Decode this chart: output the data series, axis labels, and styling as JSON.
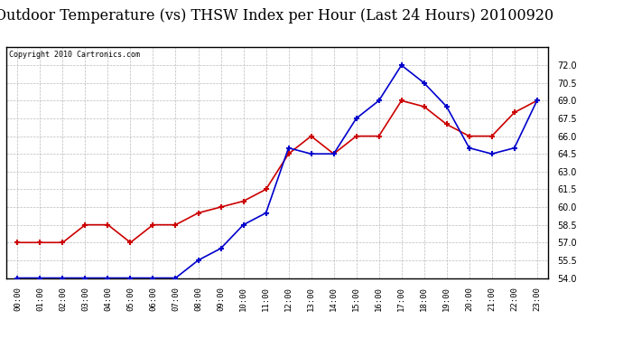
{
  "title": "Outdoor Temperature (vs) THSW Index per Hour (Last 24 Hours) 20100920",
  "copyright_text": "Copyright 2010 Cartronics.com",
  "hours": [
    "00:00",
    "01:00",
    "02:00",
    "03:00",
    "04:00",
    "05:00",
    "06:00",
    "07:00",
    "08:00",
    "09:00",
    "10:00",
    "11:00",
    "12:00",
    "13:00",
    "14:00",
    "15:00",
    "16:00",
    "17:00",
    "18:00",
    "19:00",
    "20:00",
    "21:00",
    "22:00",
    "23:00"
  ],
  "outdoor_temp": [
    57.0,
    57.0,
    57.0,
    58.5,
    58.5,
    57.0,
    58.5,
    58.5,
    59.5,
    60.0,
    60.5,
    61.5,
    64.5,
    66.0,
    64.5,
    66.0,
    66.0,
    69.0,
    68.5,
    67.0,
    66.0,
    66.0,
    68.0,
    69.0
  ],
  "thsw_index": [
    54.0,
    54.0,
    54.0,
    54.0,
    54.0,
    54.0,
    54.0,
    54.0,
    55.5,
    56.5,
    58.5,
    59.5,
    65.0,
    64.5,
    64.5,
    67.5,
    69.0,
    72.0,
    70.5,
    68.5,
    65.0,
    64.5,
    65.0,
    69.0
  ],
  "temp_color": "#cc0000",
  "thsw_color": "#0000cc",
  "ylim_min": 54.0,
  "ylim_max": 73.5,
  "yticks": [
    54.0,
    55.5,
    57.0,
    58.5,
    60.0,
    61.5,
    63.0,
    64.5,
    66.0,
    67.5,
    69.0,
    70.5,
    72.0
  ],
  "background_color": "#ffffff",
  "plot_bg_color": "#ffffff",
  "grid_color": "#bbbbbb",
  "title_fontsize": 11.5,
  "marker_size": 4
}
